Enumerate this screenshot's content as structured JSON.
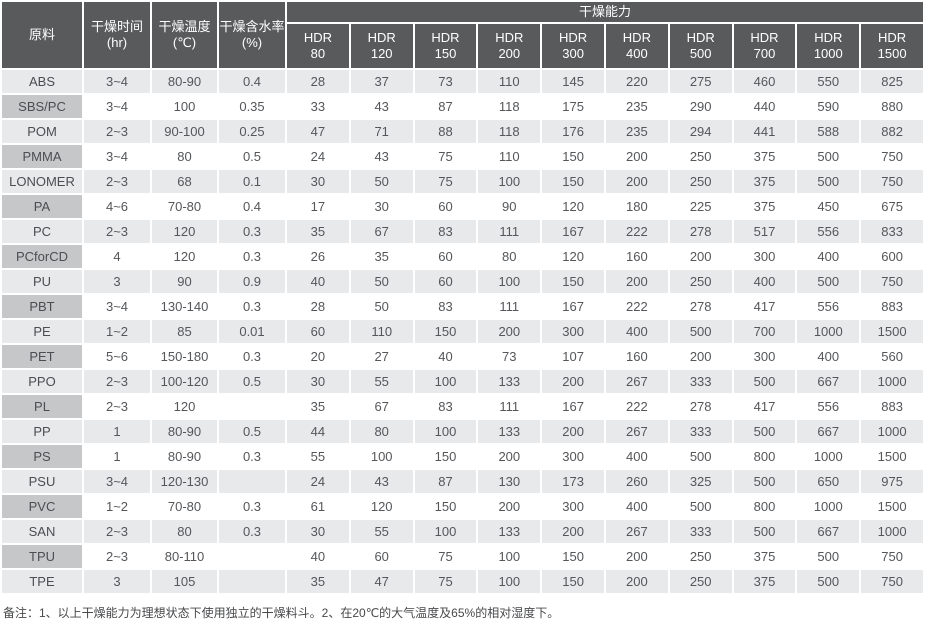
{
  "table": {
    "columns": {
      "material": "原料",
      "time": {
        "label": "干燥时间",
        "unit": "(hr)"
      },
      "temp": {
        "label": "干燥温度",
        "unit": "(℃)"
      },
      "moisture": {
        "label": "干燥含水率",
        "unit": "(%)"
      }
    },
    "capacity_group_label": "干燥能力",
    "capacity_columns": [
      {
        "name": "HDR",
        "size": "80"
      },
      {
        "name": "HDR",
        "size": "120"
      },
      {
        "name": "HDR",
        "size": "150"
      },
      {
        "name": "HDR",
        "size": "200"
      },
      {
        "name": "HDR",
        "size": "300"
      },
      {
        "name": "HDR",
        "size": "400"
      },
      {
        "name": "HDR",
        "size": "500"
      },
      {
        "name": "HDR",
        "size": "700"
      },
      {
        "name": "HDR",
        "size": "1000"
      },
      {
        "name": "HDR",
        "size": "1500"
      }
    ],
    "rows": [
      {
        "material": "ABS",
        "time": "3~4",
        "temp": "80-90",
        "moisture": "0.4",
        "capacity": [
          "28",
          "37",
          "73",
          "110",
          "145",
          "220",
          "275",
          "460",
          "550",
          "825"
        ]
      },
      {
        "material": "SBS/PC",
        "time": "3~4",
        "temp": "100",
        "moisture": "0.35",
        "capacity": [
          "33",
          "43",
          "87",
          "118",
          "175",
          "235",
          "290",
          "440",
          "590",
          "880"
        ]
      },
      {
        "material": "POM",
        "time": "2~3",
        "temp": "90-100",
        "moisture": "0.25",
        "capacity": [
          "47",
          "71",
          "88",
          "118",
          "176",
          "235",
          "294",
          "441",
          "588",
          "882"
        ]
      },
      {
        "material": "PMMA",
        "time": "3~4",
        "temp": "80",
        "moisture": "0.5",
        "capacity": [
          "24",
          "43",
          "75",
          "110",
          "150",
          "200",
          "250",
          "375",
          "500",
          "750"
        ]
      },
      {
        "material": "LONOMER",
        "time": "2~3",
        "temp": "68",
        "moisture": "0.1",
        "capacity": [
          "30",
          "50",
          "75",
          "100",
          "150",
          "200",
          "250",
          "375",
          "500",
          "750"
        ]
      },
      {
        "material": "PA",
        "time": "4~6",
        "temp": "70-80",
        "moisture": "0.4",
        "capacity": [
          "17",
          "30",
          "60",
          "90",
          "120",
          "180",
          "225",
          "375",
          "450",
          "675"
        ]
      },
      {
        "material": "PC",
        "time": "2~3",
        "temp": "120",
        "moisture": "0.3",
        "capacity": [
          "35",
          "67",
          "83",
          "111",
          "167",
          "222",
          "278",
          "517",
          "556",
          "833"
        ]
      },
      {
        "material": "PCforCD",
        "time": "4",
        "temp": "120",
        "moisture": "0.3",
        "capacity": [
          "26",
          "35",
          "60",
          "80",
          "120",
          "160",
          "200",
          "300",
          "400",
          "600"
        ]
      },
      {
        "material": "PU",
        "time": "3",
        "temp": "90",
        "moisture": "0.9",
        "capacity": [
          "40",
          "50",
          "60",
          "100",
          "150",
          "200",
          "250",
          "400",
          "500",
          "750"
        ]
      },
      {
        "material": "PBT",
        "time": "3~4",
        "temp": "130-140",
        "moisture": "0.3",
        "capacity": [
          "28",
          "50",
          "83",
          "111",
          "167",
          "222",
          "278",
          "417",
          "556",
          "883"
        ]
      },
      {
        "material": "PE",
        "time": "1~2",
        "temp": "85",
        "moisture": "0.01",
        "capacity": [
          "60",
          "110",
          "150",
          "200",
          "300",
          "400",
          "500",
          "700",
          "1000",
          "1500"
        ]
      },
      {
        "material": "PET",
        "time": "5~6",
        "temp": "150-180",
        "moisture": "0.3",
        "capacity": [
          "20",
          "27",
          "40",
          "73",
          "107",
          "160",
          "200",
          "300",
          "400",
          "560"
        ]
      },
      {
        "material": "PPO",
        "time": "2~3",
        "temp": "100-120",
        "moisture": "0.5",
        "capacity": [
          "30",
          "55",
          "100",
          "133",
          "200",
          "267",
          "333",
          "500",
          "667",
          "1000"
        ]
      },
      {
        "material": "PL",
        "time": "2~3",
        "temp": "120",
        "moisture": "",
        "capacity": [
          "35",
          "67",
          "83",
          "111",
          "167",
          "222",
          "278",
          "417",
          "556",
          "883"
        ]
      },
      {
        "material": "PP",
        "time": "1",
        "temp": "80-90",
        "moisture": "0.5",
        "capacity": [
          "44",
          "80",
          "100",
          "133",
          "200",
          "267",
          "333",
          "500",
          "667",
          "1000"
        ]
      },
      {
        "material": "PS",
        "time": "1",
        "temp": "80-90",
        "moisture": "0.3",
        "capacity": [
          "55",
          "100",
          "150",
          "200",
          "300",
          "400",
          "500",
          "800",
          "1000",
          "1500"
        ]
      },
      {
        "material": "PSU",
        "time": "3~4",
        "temp": "120-130",
        "moisture": "",
        "capacity": [
          "24",
          "43",
          "87",
          "130",
          "173",
          "260",
          "325",
          "500",
          "650",
          "975"
        ]
      },
      {
        "material": "PVC",
        "time": "1~2",
        "temp": "70-80",
        "moisture": "0.3",
        "capacity": [
          "61",
          "120",
          "150",
          "200",
          "300",
          "400",
          "500",
          "800",
          "1000",
          "1500"
        ]
      },
      {
        "material": "SAN",
        "time": "2~3",
        "temp": "80",
        "moisture": "0.3",
        "capacity": [
          "30",
          "55",
          "100",
          "133",
          "200",
          "267",
          "333",
          "500",
          "667",
          "1000"
        ]
      },
      {
        "material": "TPU",
        "time": "2~3",
        "temp": "80-110",
        "moisture": "",
        "capacity": [
          "40",
          "60",
          "75",
          "100",
          "150",
          "200",
          "250",
          "375",
          "500",
          "750"
        ]
      },
      {
        "material": "TPE",
        "time": "3",
        "temp": "105",
        "moisture": "",
        "capacity": [
          "35",
          "47",
          "75",
          "100",
          "150",
          "200",
          "250",
          "375",
          "500",
          "750"
        ]
      }
    ]
  },
  "footer": {
    "note": "备注：1、以上干燥能力为理想状态下使用独立的干燥料斗。2、在20℃的大气温度及65%的相对湿度下。"
  },
  "colors": {
    "header_bg": "#595a5c",
    "header_text": "#ffffff",
    "material_col_bg": "#c6c7c9",
    "row_alt_bg": "#e8e9eb",
    "row_bg": "#ffffff",
    "body_text": "#545659"
  }
}
